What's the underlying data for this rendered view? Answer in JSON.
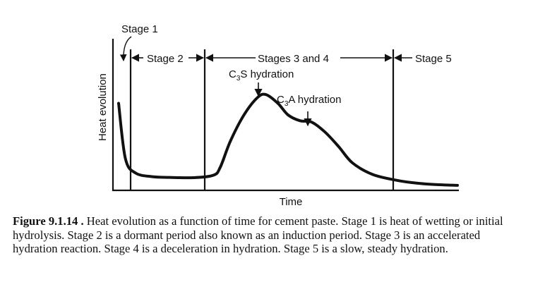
{
  "chart_data": {
    "type": "line",
    "title": "",
    "xlabel": "Time",
    "ylabel": "Heat evolution",
    "stages": {
      "stage1": "Stage 1",
      "stage2": "Stage 2",
      "stage34": "Stages 3 and 4",
      "stage5": "Stage 5"
    },
    "annotations": {
      "c3s_main": "C",
      "c3s_sub": "3",
      "c3s_rest": "S hydration",
      "c3a_main": "C",
      "c3a_sub": "3",
      "c3a_rest": "A hydration"
    },
    "series": [
      {
        "values_description_free": true,
        "x": [
          0.0,
          0.02,
          0.05,
          0.1,
          0.15,
          0.22,
          0.28,
          0.3,
          0.33,
          0.37,
          0.41,
          0.435,
          0.47,
          0.5,
          0.535,
          0.57,
          0.61,
          0.65,
          0.69,
          0.75,
          0.82,
          0.88,
          0.94,
          1.0
        ],
        "y": [
          0.58,
          0.2,
          0.1,
          0.075,
          0.07,
          0.068,
          0.085,
          0.14,
          0.32,
          0.5,
          0.62,
          0.64,
          0.58,
          0.5,
          0.46,
          0.45,
          0.38,
          0.28,
          0.17,
          0.09,
          0.05,
          0.03,
          0.02,
          0.015
        ]
      }
    ],
    "grid": false
  },
  "caption": {
    "label": "Figure 9.1.14 .",
    "text": " Heat evolution as a function of time for cement paste. Stage 1 is heat of wetting or initial hydrolysis. Stage 2 is a dormant period also known as an induction period. Stage 3 is an accelerated hydration reaction. Stage 4 is a deceleration in hydration. Stage 5 is a slow, steady hydration."
  }
}
